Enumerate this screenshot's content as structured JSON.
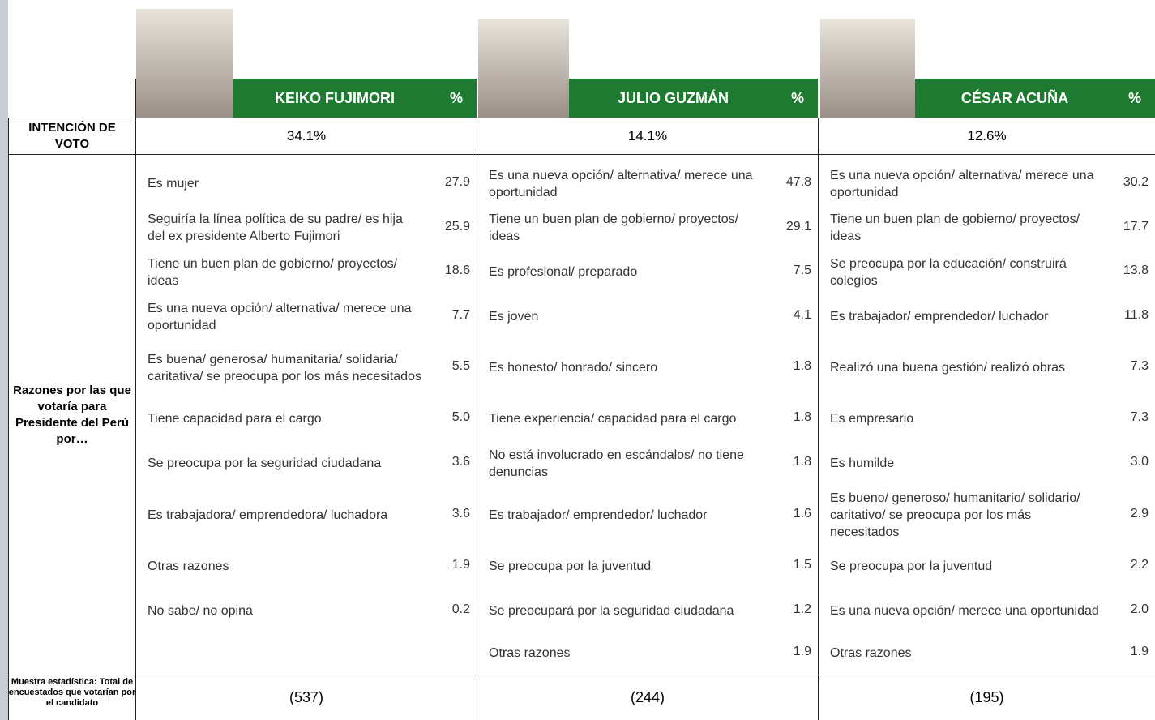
{
  "row_labels": {
    "vote_intention": "INTENCIÓN DE VOTO",
    "reasons": "Razones por las que votaría para Presidente del Perú por…",
    "sample": "Muestra estadística: Total de encuestados que votarían por el candidato"
  },
  "candidates": [
    {
      "name": "KEIKO FUJIMORI",
      "percent_header": "%",
      "vote": "34.1%",
      "sample": "(537)",
      "reasons": [
        {
          "text": "Es mujer",
          "value": "27.9"
        },
        {
          "text": "Seguiría la línea política de su padre/ es hija del ex presidente Alberto Fujimori",
          "value": "25.9"
        },
        {
          "text": "Tiene un buen plan de gobierno/ proyectos/ ideas",
          "value": "18.6"
        },
        {
          "text": "Es una nueva opción/ alternativa/ merece una oportunidad",
          "value": "7.7"
        },
        {
          "text": "Es buena/ generosa/ humanitaria/ solidaria/ caritativa/ se preocupa por los más necesitados",
          "value": "5.5"
        },
        {
          "text": "Tiene capacidad para el cargo",
          "value": "5.0"
        },
        {
          "text": "Se preocupa por la seguridad ciudadana",
          "value": "3.6"
        },
        {
          "text": "Es trabajadora/ emprendedora/ luchadora",
          "value": "3.6"
        },
        {
          "text": "Otras razones",
          "value": "1.9"
        },
        {
          "text": "No sabe/ no opina",
          "value": "0.2"
        }
      ]
    },
    {
      "name": "JULIO GUZMÁN",
      "percent_header": "%",
      "vote": "14.1%",
      "sample": "(244)",
      "reasons": [
        {
          "text": "Es una nueva opción/ alternativa/ merece una oportunidad",
          "value": "47.8"
        },
        {
          "text": "Tiene un buen plan de gobierno/ proyectos/ ideas",
          "value": "29.1"
        },
        {
          "text": "Es profesional/ preparado",
          "value": "7.5"
        },
        {
          "text": "Es joven",
          "value": "4.1"
        },
        {
          "text": "Es honesto/ honrado/ sincero",
          "value": "1.8"
        },
        {
          "text": "Tiene experiencia/ capacidad para el cargo",
          "value": "1.8"
        },
        {
          "text": "No está involucrado en escándalos/ no tiene denuncias",
          "value": "1.8"
        },
        {
          "text": "Es trabajador/ emprendedor/ luchador",
          "value": "1.6"
        },
        {
          "text": "Se preocupa por la juventud",
          "value": "1.5"
        },
        {
          "text": "Se preocupará por la seguridad ciudadana",
          "value": "1.2"
        },
        {
          "text": "Otras razones",
          "value": "1.9"
        }
      ]
    },
    {
      "name": "CÉSAR ACUÑA",
      "percent_header": "%",
      "vote": "12.6%",
      "sample": "(195)",
      "reasons": [
        {
          "text": "Es una nueva opción/ alternativa/ merece una oportunidad",
          "value": "30.2"
        },
        {
          "text": "Tiene un buen plan de gobierno/ proyectos/ ideas",
          "value": "17.7"
        },
        {
          "text": "Se preocupa por la educación/ construirá colegios",
          "value": "13.8"
        },
        {
          "text": "Es trabajador/ emprendedor/ luchador",
          "value": "11.8"
        },
        {
          "text": "Realizó una buena gestión/ realizó obras",
          "value": "7.3"
        },
        {
          "text": "Es empresario",
          "value": "7.3"
        },
        {
          "text": "Es humilde",
          "value": "3.0"
        },
        {
          "text": "Es bueno/ generoso/ humanitario/ solidario/ caritativo/ se preocupa por los más necesitados",
          "value": "2.9"
        },
        {
          "text": "Se preocupa por la juventud",
          "value": "2.2"
        },
        {
          "text": "Es una nueva opción/ merece una oportunidad",
          "value": "2.0"
        },
        {
          "text": "Otras razones",
          "value": "1.9"
        }
      ]
    }
  ]
}
